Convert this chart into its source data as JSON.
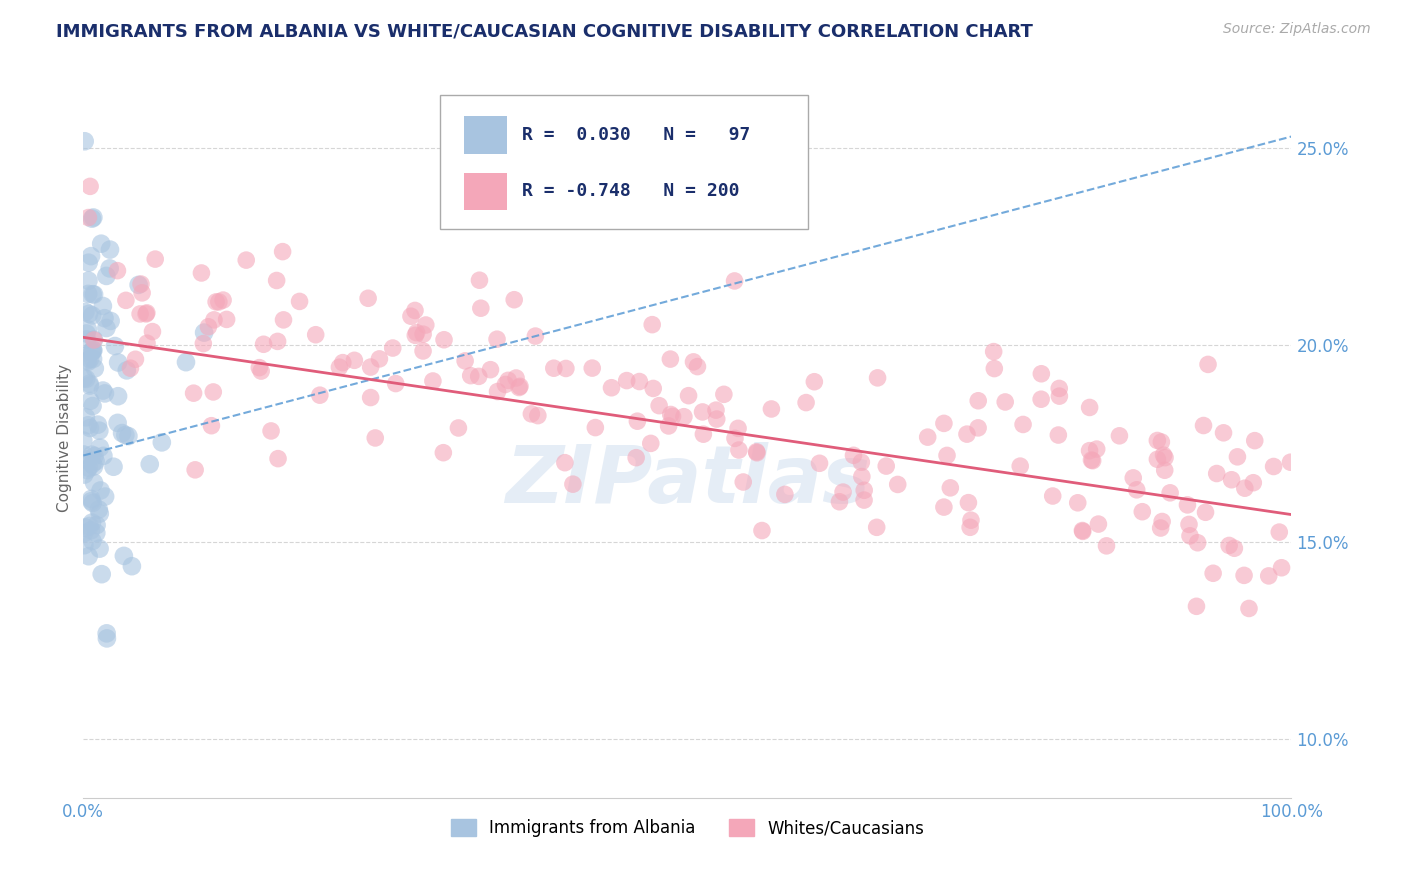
{
  "title": "IMMIGRANTS FROM ALBANIA VS WHITE/CAUCASIAN COGNITIVE DISABILITY CORRELATION CHART",
  "source": "Source: ZipAtlas.com",
  "ylabel": "Cognitive Disability",
  "xlim": [
    0,
    1.0
  ],
  "ylim": [
    0.085,
    0.268
  ],
  "yticks": [
    0.1,
    0.15,
    0.2,
    0.25
  ],
  "ytick_labels": [
    "10.0%",
    "15.0%",
    "20.0%",
    "25.0%"
  ],
  "xtick_labels": [
    "0.0%",
    "100.0%"
  ],
  "albania_R": 0.03,
  "albania_N": 97,
  "white_R": -0.748,
  "white_N": 200,
  "albania_color": "#a8c4e0",
  "white_color": "#f4a7b9",
  "albania_line_color": "#5b9bd5",
  "white_line_color": "#e05c7a",
  "legend_label_albania": "Immigrants from Albania",
  "legend_label_white": "Whites/Caucasians",
  "watermark_text": "ZIPatlas",
  "background_color": "#ffffff",
  "grid_color": "#cccccc",
  "title_color": "#1a2e6b",
  "axis_color": "#5b9bd5",
  "title_fontsize": 13,
  "label_fontsize": 11,
  "tick_fontsize": 12,
  "alb_trend_start_y": 0.172,
  "alb_trend_end_y": 0.253,
  "wh_trend_start_y": 0.202,
  "wh_trend_end_y": 0.157
}
